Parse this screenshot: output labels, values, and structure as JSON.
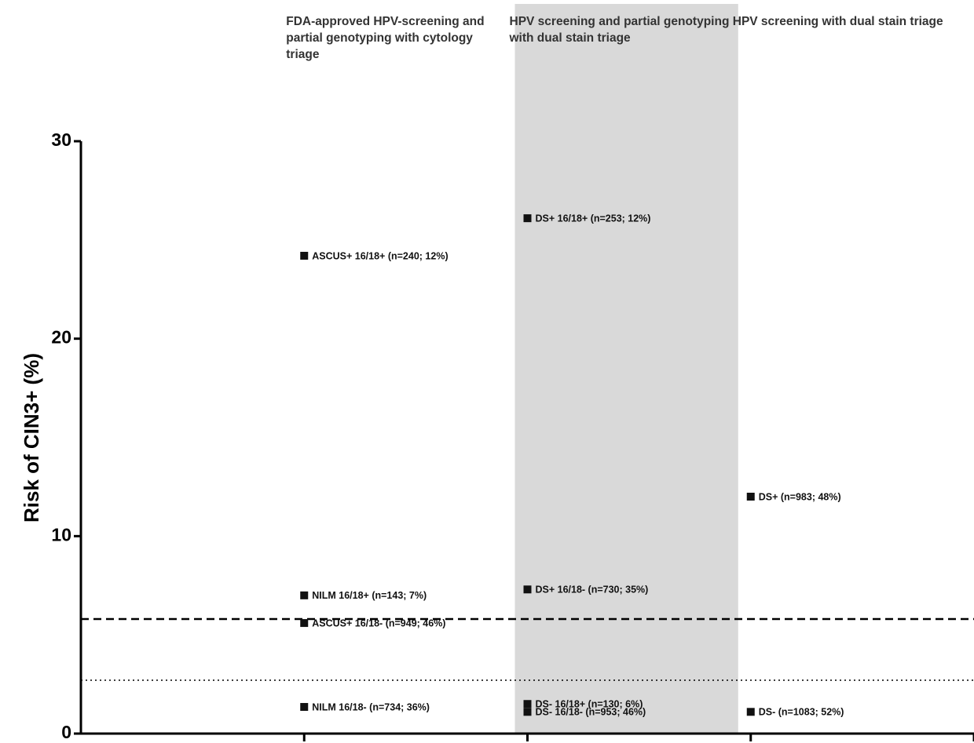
{
  "chart_data": {
    "type": "scatter",
    "y_label": "Risk of CIN3+ (%)",
    "ylim": [
      0,
      30
    ],
    "yticks": [
      0,
      10,
      20,
      30
    ],
    "xlim": [
      0,
      4
    ],
    "highlight_series": 1,
    "reference_lines": [
      {
        "value": 5.8,
        "style": "dashed"
      },
      {
        "value": 2.7,
        "style": "dotted"
      }
    ],
    "series": [
      {
        "name": "FDA-approved HPV-screening and partial genotyping with cytology triage",
        "color": "#111111",
        "x": 1,
        "values": [
          24.2,
          7.0,
          5.6,
          1.35
        ],
        "labels": [
          "ASCUS+ 16/18+ (n=240; 12%)",
          "NILM 16/18+ (n=143; 7%)",
          "ASCUS+ 16/18- (n=949; 46%)",
          "NILM 16/18- (n=734; 36%)"
        ]
      },
      {
        "name": "HPV screening and partial genotyping with dual stain triage",
        "color": "#111111",
        "x": 2,
        "values": [
          26.1,
          7.3,
          1.5,
          1.1
        ],
        "labels": [
          "DS+ 16/18+ (n=253; 12%)",
          "DS+ 16/18- (n=730; 35%)",
          "DS- 16/18+ (n=130; 6%)",
          "DS- 16/18- (n=953; 46%)"
        ]
      },
      {
        "name": "HPV screening with dual stain triage",
        "color": "#111111",
        "x": 3,
        "values": [
          12.0,
          1.1
        ],
        "labels": [
          "DS+ (n=983; 48%)",
          "DS- (n=1083; 52%)"
        ]
      }
    ]
  }
}
